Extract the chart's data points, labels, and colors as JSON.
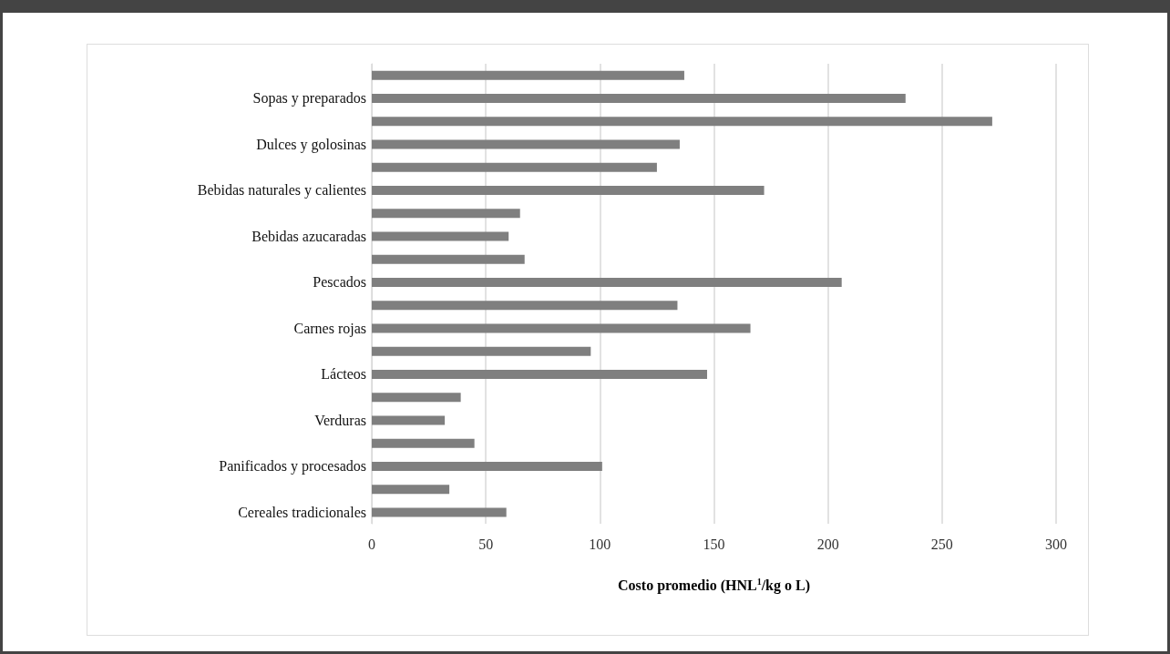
{
  "chart_data": {
    "type": "bar",
    "orientation": "horizontal",
    "xlabel": "Costo promedio (HNL$^{1}$/kg o L)",
    "categories": [
      null,
      "Sopas y preparados",
      null,
      "Dulces y golosinas",
      null,
      "Bebidas naturales y calientes",
      null,
      "Bebidas azucaradas",
      null,
      "Pescados",
      null,
      "Carnes rojas",
      null,
      "Lácteos",
      null,
      "Verduras",
      null,
      "Panificados y procesados",
      null,
      "Cereales tradicionales"
    ],
    "values": [
      137,
      234,
      272,
      135,
      125,
      172,
      65,
      60,
      67,
      206,
      134,
      166,
      96,
      147,
      39,
      32,
      45,
      101,
      34,
      59
    ],
    "color": "#7f7f7f",
    "xlim": [
      0,
      300
    ],
    "xticks": [
      0,
      50,
      100,
      150,
      200,
      250,
      300
    ],
    "grid": "x"
  }
}
